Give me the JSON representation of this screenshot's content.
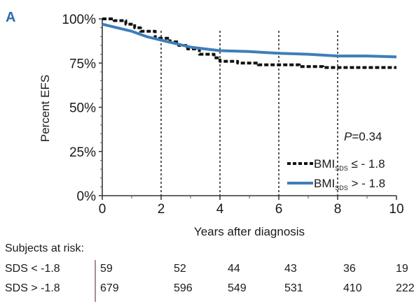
{
  "panel_label": "A",
  "pvalue": {
    "prefix": "P",
    "value": "=0.34"
  },
  "legend": [
    {
      "main": "BMI",
      "sub": "SDS",
      "cond": " ≤ - 1.8",
      "color": "#111111",
      "style": "dashed"
    },
    {
      "main": "BMI",
      "sub": "SDS",
      "cond": " > - 1.8",
      "color": "#3d7eb9",
      "style": "solid"
    }
  ],
  "chart_data": {
    "type": "line",
    "xlabel": "Years after diagnosis",
    "ylabel": "Percent EFS",
    "xlim": [
      0,
      10
    ],
    "ylim": [
      0,
      100
    ],
    "x_ticks": [
      "0",
      "2",
      "4",
      "6",
      "8",
      "10"
    ],
    "y_ticks": [
      "0%",
      "25%",
      "50%",
      "75%",
      "100%"
    ],
    "reference_lines_x": [
      2,
      4,
      6,
      8
    ],
    "series": [
      {
        "name": "BMI SDS ≤ -1.8",
        "color": "#111111",
        "style": "dashed",
        "points": [
          [
            0,
            100
          ],
          [
            0.4,
            100
          ],
          [
            0.4,
            99
          ],
          [
            0.8,
            99
          ],
          [
            0.8,
            97
          ],
          [
            1.1,
            97
          ],
          [
            1.1,
            95
          ],
          [
            1.3,
            95
          ],
          [
            1.3,
            93
          ],
          [
            1.8,
            93
          ],
          [
            1.8,
            89
          ],
          [
            2.3,
            89
          ],
          [
            2.3,
            87
          ],
          [
            2.6,
            87
          ],
          [
            2.6,
            85
          ],
          [
            2.9,
            85
          ],
          [
            2.9,
            83
          ],
          [
            3.3,
            83
          ],
          [
            3.3,
            80
          ],
          [
            3.8,
            80
          ],
          [
            3.8,
            78
          ],
          [
            4.0,
            78
          ],
          [
            4.0,
            76
          ],
          [
            4.6,
            76
          ],
          [
            4.6,
            75
          ],
          [
            5.3,
            75
          ],
          [
            5.3,
            74
          ],
          [
            6.7,
            74
          ],
          [
            6.7,
            73
          ],
          [
            7.5,
            73
          ],
          [
            7.5,
            72.5
          ],
          [
            10,
            72.5
          ]
        ]
      },
      {
        "name": "BMI SDS > -1.8",
        "color": "#3d7eb9",
        "style": "solid",
        "points": [
          [
            0,
            97
          ],
          [
            0.5,
            95
          ],
          [
            1,
            93
          ],
          [
            1.5,
            90
          ],
          [
            2,
            88
          ],
          [
            2.5,
            86
          ],
          [
            3,
            84
          ],
          [
            3.5,
            83
          ],
          [
            4,
            82
          ],
          [
            5,
            81.5
          ],
          [
            6,
            80.5
          ],
          [
            7,
            80
          ],
          [
            8,
            79
          ],
          [
            9,
            79
          ],
          [
            10,
            78.5
          ]
        ]
      }
    ]
  },
  "risk_table": {
    "title": "Subjects at risk:",
    "rows": [
      {
        "label": "SDS < -1.8",
        "values": [
          "59",
          "52",
          "44",
          "43",
          "36",
          "19"
        ]
      },
      {
        "label": "SDS > -1.8",
        "values": [
          "679",
          "596",
          "549",
          "531",
          "410",
          "222"
        ]
      }
    ]
  }
}
